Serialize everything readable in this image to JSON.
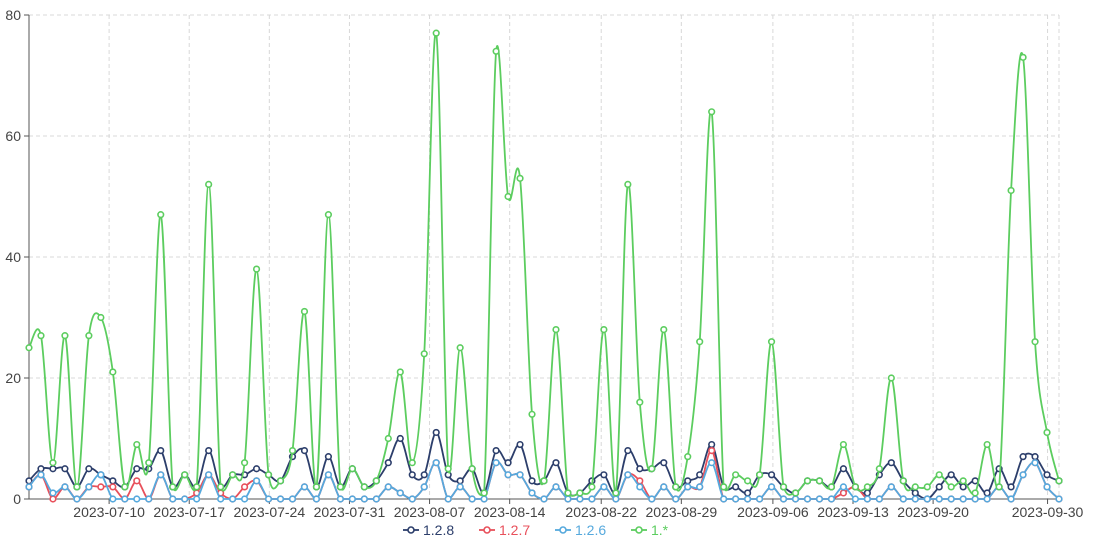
{
  "chart_data": {
    "type": "line",
    "title": "",
    "xlabel": "",
    "ylabel": "",
    "ylim": [
      0,
      80
    ],
    "y_ticks": [
      0,
      20,
      40,
      60,
      80
    ],
    "x_tick_labels": [
      "2023-07-10",
      "2023-07-17",
      "2023-07-24",
      "2023-07-31",
      "2023-08-07",
      "2023-08-14",
      "2023-08-22",
      "2023-08-29",
      "2023-09-06",
      "2023-09-13",
      "2023-09-20",
      "2023-09-30"
    ],
    "grid": true,
    "legend": "bottom-center",
    "x_start": "2023-07-03",
    "x_end": "2023-10-01",
    "series": [
      {
        "name": "1.2.8",
        "color": "#2c3e6b",
        "values": [
          3,
          5,
          5,
          5,
          2,
          5,
          4,
          3,
          2,
          5,
          5,
          8,
          2,
          4,
          2,
          8,
          2,
          4,
          4,
          5,
          4,
          3,
          7,
          8,
          2,
          7,
          2,
          5,
          2,
          3,
          6,
          10,
          4,
          4,
          11,
          4,
          3,
          5,
          1,
          8,
          6,
          9,
          3,
          3,
          6,
          1,
          1,
          3,
          4,
          1,
          8,
          5,
          5,
          6,
          2,
          3,
          4,
          9,
          2,
          2,
          1,
          4,
          4,
          2,
          1,
          3,
          3,
          2,
          5,
          2,
          1,
          4,
          6,
          3,
          1,
          0,
          2,
          4,
          2,
          3,
          1,
          5,
          2,
          7,
          7,
          4,
          3
        ]
      },
      {
        "name": "1.2.7",
        "color": "#e8505b",
        "values": [
          2,
          4,
          0,
          2,
          0,
          2,
          2,
          2,
          0,
          3,
          0,
          4,
          0,
          0,
          1,
          4,
          1,
          0,
          2,
          3,
          0,
          0,
          0,
          2,
          0,
          4,
          0,
          0,
          0,
          0,
          2,
          1,
          0,
          2,
          6,
          0,
          2,
          0,
          0,
          6,
          4,
          4,
          1,
          0,
          2,
          0,
          0,
          0,
          2,
          0,
          4,
          3,
          0,
          2,
          0,
          2,
          2,
          8,
          0,
          0,
          0,
          0,
          2,
          0,
          0,
          0,
          0,
          0,
          1,
          2,
          0,
          0,
          2,
          0,
          0,
          0,
          0,
          0,
          0,
          0,
          0,
          2,
          0,
          4,
          6,
          2,
          0
        ]
      },
      {
        "name": "1.2.6",
        "color": "#56a9dd",
        "values": [
          2,
          4,
          1,
          2,
          0,
          2,
          4,
          0,
          0,
          0,
          0,
          4,
          0,
          0,
          0,
          4,
          0,
          0,
          0,
          3,
          0,
          0,
          0,
          2,
          0,
          4,
          0,
          0,
          0,
          0,
          2,
          1,
          0,
          2,
          6,
          0,
          2,
          0,
          0,
          6,
          4,
          4,
          1,
          0,
          2,
          0,
          0,
          0,
          2,
          0,
          4,
          2,
          0,
          2,
          0,
          2,
          2,
          6,
          0,
          0,
          0,
          0,
          2,
          0,
          0,
          0,
          0,
          0,
          2,
          0,
          0,
          0,
          2,
          0,
          0,
          0,
          0,
          0,
          0,
          0,
          0,
          2,
          0,
          4,
          6,
          2,
          0
        ]
      },
      {
        "name": "1.*",
        "color": "#5ccd5f",
        "values": [
          25,
          27,
          6,
          27,
          2,
          27,
          30,
          21,
          2,
          9,
          6,
          47,
          2,
          4,
          2,
          52,
          2,
          4,
          6,
          38,
          4,
          3,
          8,
          31,
          2,
          47,
          2,
          5,
          2,
          3,
          10,
          21,
          6,
          24,
          77,
          5,
          25,
          5,
          1,
          74,
          50,
          53,
          14,
          3,
          28,
          1,
          1,
          2,
          28,
          1,
          52,
          16,
          5,
          28,
          2,
          7,
          26,
          64,
          2,
          4,
          3,
          4,
          26,
          2,
          1,
          3,
          3,
          2,
          9,
          2,
          2,
          5,
          20,
          3,
          2,
          2,
          4,
          2,
          3,
          1,
          9,
          2,
          51,
          73,
          26,
          11,
          3
        ]
      }
    ]
  }
}
